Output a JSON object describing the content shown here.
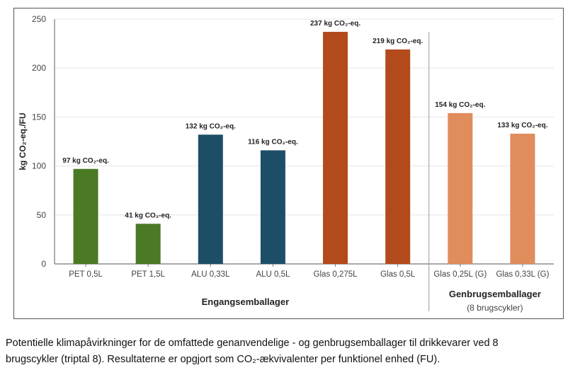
{
  "chart_data": {
    "type": "bar",
    "title": "",
    "xlabel": "",
    "ylabel": "kg CO₂-eq./FU",
    "ylim": [
      0,
      250
    ],
    "yticks": [
      0,
      50,
      100,
      150,
      200,
      250
    ],
    "grid": true,
    "categories": [
      "PET 0,5L",
      "PET 1,5L",
      "ALU 0,33L",
      "ALU 0,5L",
      "Glas 0,275L",
      "Glas 0,5L",
      "Glas 0,25L (G)",
      "Glas 0,33L (G)"
    ],
    "values": [
      97,
      41,
      132,
      116,
      237,
      219,
      154,
      133
    ],
    "data_labels": [
      "97 kg CO₂-eq.",
      "41 kg CO₂-eq.",
      "132 kg CO₂-eq.",
      "116 kg CO₂-eq.",
      "237 kg CO₂-eq.",
      "219 kg CO₂-eq.",
      "154 kg CO₂-eq.",
      "133 kg CO₂-eq."
    ],
    "colors": [
      "#4a7a23",
      "#4a7a23",
      "#1d4e68",
      "#1d4e68",
      "#b34a1c",
      "#b34a1c",
      "#e08c5b",
      "#e08c5b"
    ],
    "groups": [
      {
        "label": "Engangsemballager",
        "sublabel": "",
        "categories": [
          0,
          5
        ]
      },
      {
        "label": "Genbrugsemballager",
        "sublabel": "(8 brugscykler)",
        "categories": [
          6,
          7
        ]
      }
    ]
  },
  "caption": {
    "line1": "Potentielle klimapåvirkninger for de omfattede genanvendelige - og genbrugsemballager til drikkevarer ved 8",
    "line2": "brugscykler (triptal 8). Resultaterne er opgjort som CO₂-ækvivalenter per funktionel enhed (FU)."
  }
}
